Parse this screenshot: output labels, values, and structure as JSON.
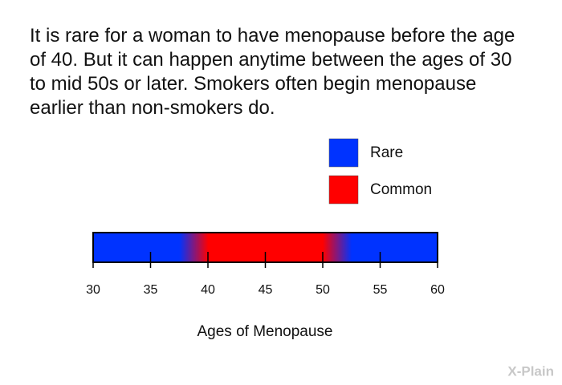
{
  "text": "It is rare for a woman to have menopause before the age of 40. But it can happen anytime between the ages of 30 to mid 50s or later. Smokers often begin menopause earlier than non-smokers do.",
  "chart_data": {
    "type": "gradient-bar",
    "legend": [
      {
        "name": "Rare",
        "color": "#0033ff"
      },
      {
        "name": "Common",
        "color": "#ff0000"
      }
    ],
    "stops": [
      {
        "value": 30,
        "color": "#0033ff"
      },
      {
        "value": 37.5,
        "color": "#0033ff"
      },
      {
        "value": 40,
        "color": "#ff0000"
      },
      {
        "value": 50,
        "color": "#ff0000"
      },
      {
        "value": 52.5,
        "color": "#0033ff"
      },
      {
        "value": 60,
        "color": "#0033ff"
      }
    ],
    "xlim": [
      30,
      60
    ],
    "xticks": [
      30,
      35,
      40,
      45,
      50,
      55,
      60
    ],
    "xlabel": "Ages of Menopause"
  },
  "logo": "X-Plain"
}
